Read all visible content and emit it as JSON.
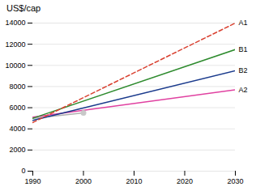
{
  "chart_data": {
    "type": "line",
    "title": "US$/cap",
    "xlim": [
      1990,
      2030
    ],
    "xticks": [
      1990,
      2000,
      2010,
      2020,
      2030
    ],
    "ylim": [
      0,
      14000
    ],
    "yticks": [
      0,
      2000,
      4000,
      6000,
      8000,
      10000,
      12000,
      14000
    ],
    "grid": true,
    "series": [
      {
        "color": "#b0b0b0",
        "line_style": "solid",
        "x": [
          1990,
          2000
        ],
        "values": [
          5000,
          5500
        ]
      },
      {
        "name": "A2",
        "color": "#e040a0",
        "line_style": "solid",
        "x": [
          1990,
          2030
        ],
        "values": [
          5100,
          7700
        ]
      },
      {
        "name": "B2",
        "color": "#1a3a8c",
        "line_style": "solid",
        "x": [
          1990,
          2030
        ],
        "values": [
          4800,
          9500
        ]
      },
      {
        "name": "B1",
        "color": "#2e8b2e",
        "line_style": "solid",
        "x": [
          1990,
          2030
        ],
        "values": [
          5000,
          11500
        ]
      },
      {
        "name": "A1",
        "color": "#d94030",
        "line_style": "dashed",
        "x": [
          1990,
          2030
        ],
        "values": [
          4600,
          14000
        ]
      },
      {
        "type": "scatter",
        "color": "#c8c8c8",
        "x": [
          2000
        ],
        "values": [
          5500
        ]
      }
    ]
  }
}
